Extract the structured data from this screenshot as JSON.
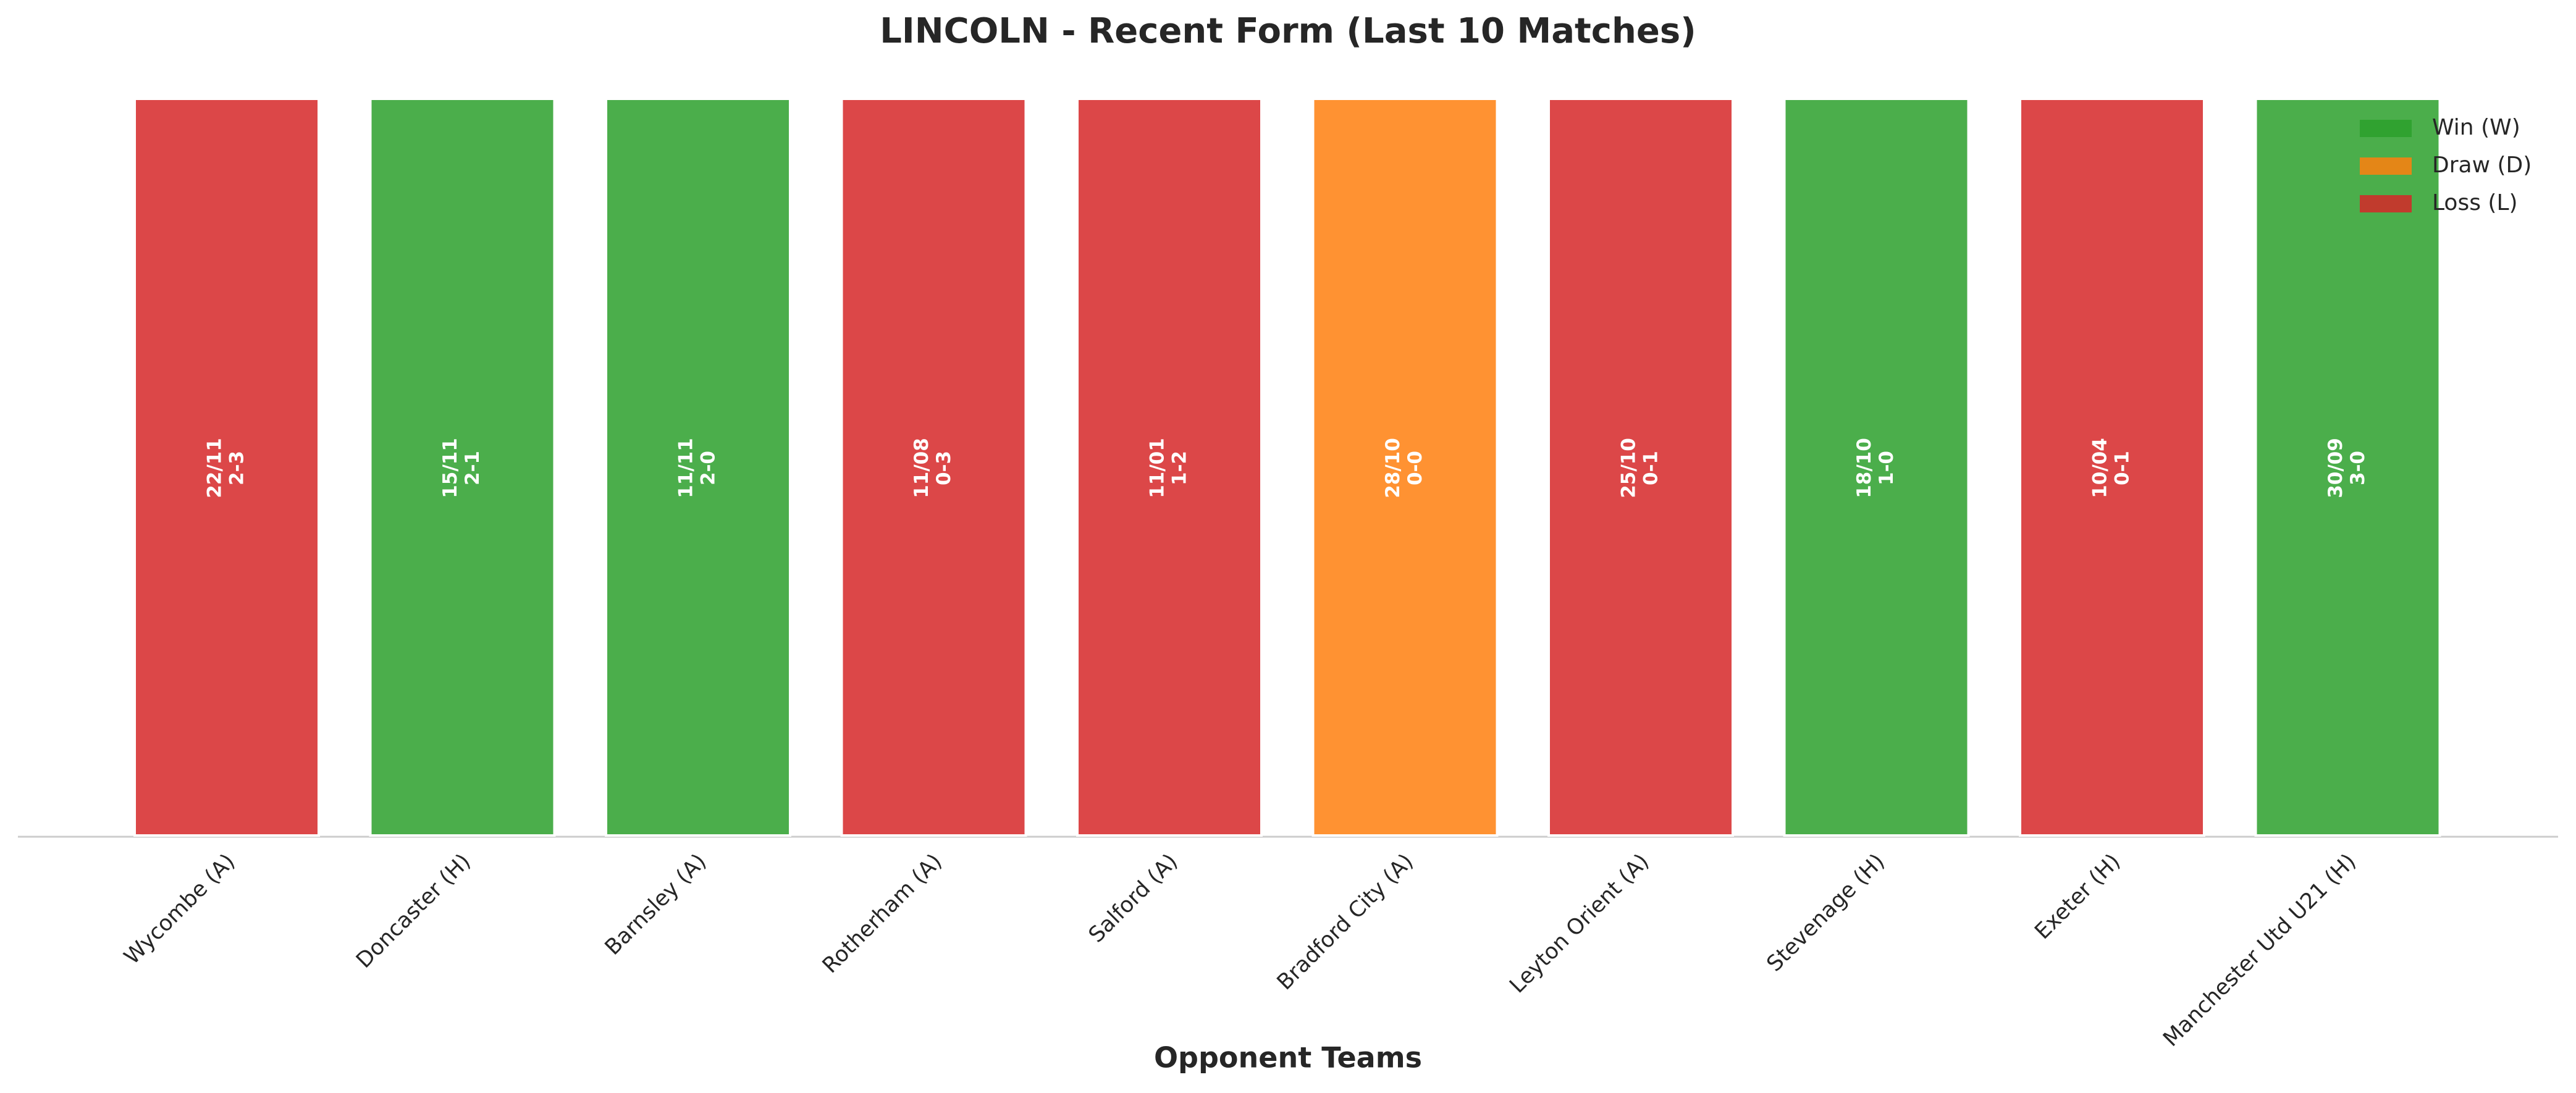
{
  "chart_data": {
    "type": "bar",
    "title": "LINCOLN - Recent Form (Last 10 Matches)",
    "x_label": "Opponent Teams",
    "categories": [
      "Wycombe (A)",
      "Doncaster (H)",
      "Barnsley (A)",
      "Rotherham (A)",
      "Salford (A)",
      "Bradford City (A)",
      "Leyton Orient (A)",
      "Stevenage (H)",
      "Exeter (H)",
      "Manchester Utd U21 (H)"
    ],
    "results": [
      "L",
      "W",
      "W",
      "L",
      "L",
      "D",
      "L",
      "W",
      "L",
      "W"
    ],
    "dates": [
      "22/11",
      "15/11",
      "11/11",
      "11/08",
      "11/01",
      "28/10",
      "25/10",
      "18/10",
      "10/04",
      "30/09"
    ],
    "scores": [
      "2-3",
      "2-1",
      "2-0",
      "0-3",
      "1-2",
      "0-0",
      "0-1",
      "1-0",
      "0-1",
      "3-0"
    ],
    "alpha": 0.85,
    "legend": {
      "loc": "upper right",
      "entries": [
        {
          "result": "W",
          "name": "Win (W)",
          "color": "#2ca02c"
        },
        {
          "result": "D",
          "name": "Draw (D)",
          "color": "#ff7f0e"
        },
        {
          "result": "L",
          "name": "Loss (L)",
          "color": "#d62728"
        }
      ]
    }
  }
}
